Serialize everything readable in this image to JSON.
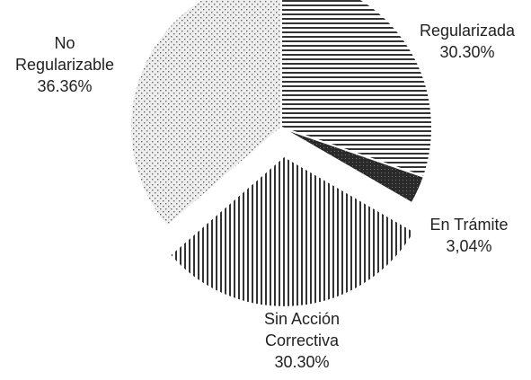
{
  "chart_data": {
    "type": "pie",
    "title": "",
    "slices": [
      {
        "label": "Regularizada",
        "value": 30.3,
        "display": "30.30%",
        "pattern": "horizontal-lines"
      },
      {
        "label": "En Trámite",
        "value": 3.04,
        "display": "3,04%",
        "pattern": "dark-crosshatch"
      },
      {
        "label": "Sin Acción Correctiva",
        "label_lines": [
          "Sin Acción",
          "Correctiva"
        ],
        "value": 30.3,
        "display": "30.30%",
        "pattern": "vertical-lines"
      },
      {
        "label": "No Regularizable",
        "label_lines": [
          "No",
          "Regularizable"
        ],
        "value": 36.36,
        "display": "36.36%",
        "pattern": "light-dots"
      }
    ],
    "start_angle_deg": 0,
    "direction": "clockwise",
    "exploded_slice": "Sin Acción Correctiva",
    "legend": "none",
    "colors": {
      "horizontal_lines": "#333333",
      "vertical_lines": "#333333",
      "dots": "#666666",
      "dots_background": "#eeeeee",
      "dark_fill": "#2a2a2a",
      "border": "#ffffff"
    }
  }
}
